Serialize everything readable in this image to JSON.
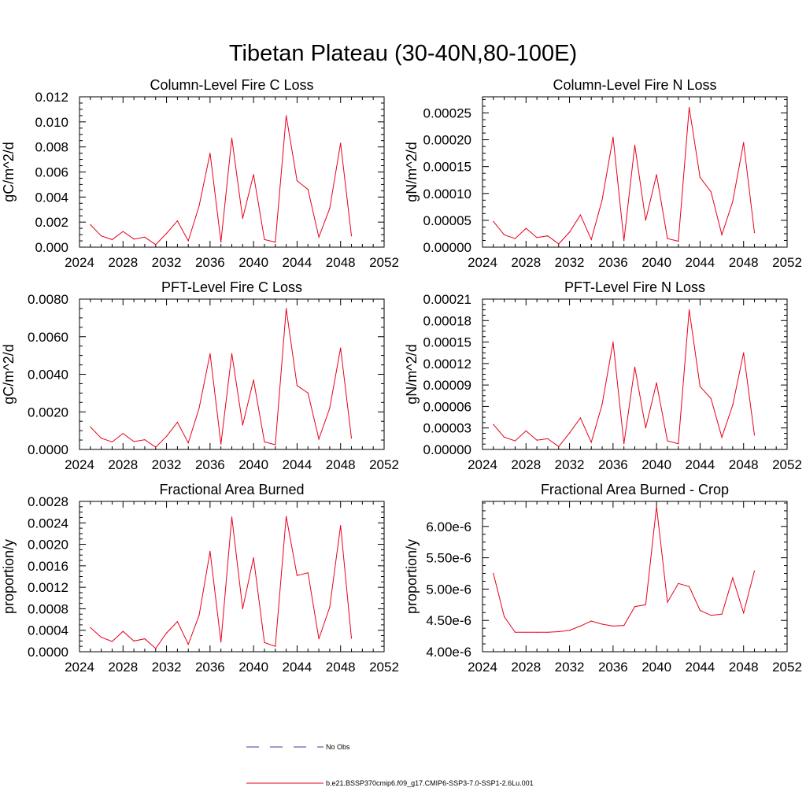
{
  "page": {
    "title": "Tibetan Plateau (30-40N,80-100E)"
  },
  "legend": {
    "items": [
      {
        "label": "No Obs",
        "color": "#3b3b9a",
        "style": "dashed"
      },
      {
        "label": "b.e21.BSSP370cmip6.f09_g17.CMIP6-SSP3-7.0-SSP1-2.6Lu.001",
        "color": "#e8001c",
        "style": "solid"
      }
    ]
  },
  "chart_data": [
    {
      "type": "line",
      "title": "Column-Level Fire C Loss",
      "ylabel": "gC/m^2/d",
      "xlim": [
        2024,
        2052
      ],
      "ylim": [
        0,
        0.012
      ],
      "xticks": [
        "2024",
        "2028",
        "2032",
        "2036",
        "2040",
        "2044",
        "2048",
        "2052"
      ],
      "yticks": [
        "0.000",
        "0.002",
        "0.004",
        "0.006",
        "0.008",
        "0.010",
        "0.012"
      ],
      "series": [
        {
          "color": "#e8001c",
          "x": [
            2025,
            2026,
            2027,
            2028,
            2029,
            2030,
            2031,
            2032,
            2033,
            2034,
            2035,
            2036,
            2037,
            2038,
            2039,
            2040,
            2041,
            2042,
            2043,
            2044,
            2045,
            2046,
            2047,
            2048,
            2049
          ],
          "values": [
            0.0018,
            0.0009,
            0.0006,
            0.00125,
            0.00065,
            0.0008,
            0.0002,
            0.0011,
            0.0021,
            0.0005,
            0.0033,
            0.0075,
            0.0004,
            0.0087,
            0.0023,
            0.0058,
            0.0006,
            0.0004,
            0.0105,
            0.0053,
            0.0046,
            0.0008,
            0.0031,
            0.0083,
            0.0009
          ]
        }
      ]
    },
    {
      "type": "line",
      "title": "Column-Level Fire N Loss",
      "ylabel": "gN/m^2/d",
      "xlim": [
        2024,
        2052
      ],
      "ylim": [
        0,
        0.00028
      ],
      "xticks": [
        "2024",
        "2028",
        "2032",
        "2036",
        "2040",
        "2044",
        "2048",
        "2052"
      ],
      "yticks": [
        "0.00000",
        "0.00005",
        "0.00010",
        "0.00015",
        "0.00020",
        "0.00025"
      ],
      "series": [
        {
          "color": "#e8001c",
          "x": [
            2025,
            2026,
            2027,
            2028,
            2029,
            2030,
            2031,
            2032,
            2033,
            2034,
            2035,
            2036,
            2037,
            2038,
            2039,
            2040,
            2041,
            2042,
            2043,
            2044,
            2045,
            2046,
            2047,
            2048,
            2049
          ],
          "values": [
            4.8e-05,
            2.3e-05,
            1.6e-05,
            3.5e-05,
            1.8e-05,
            2.1e-05,
            6e-06,
            2.8e-05,
            6e-05,
            1.4e-05,
            8.8e-05,
            0.000205,
            1.2e-05,
            0.00019,
            5e-05,
            0.000135,
            1.6e-05,
            1.1e-05,
            0.00026,
            0.00013,
            0.000103,
            2.3e-05,
            8.5e-05,
            0.000195,
            2.7e-05
          ]
        }
      ]
    },
    {
      "type": "line",
      "title": "PFT-Level Fire C Loss",
      "ylabel": "gC/m^2/d",
      "xlim": [
        2024,
        2052
      ],
      "ylim": [
        0,
        0.008
      ],
      "xticks": [
        "2024",
        "2028",
        "2032",
        "2036",
        "2040",
        "2044",
        "2048",
        "2052"
      ],
      "yticks": [
        "0.0000",
        "0.0020",
        "0.0040",
        "0.0060",
        "0.0080"
      ],
      "series": [
        {
          "color": "#e8001c",
          "x": [
            2025,
            2026,
            2027,
            2028,
            2029,
            2030,
            2031,
            2032,
            2033,
            2034,
            2035,
            2036,
            2037,
            2038,
            2039,
            2040,
            2041,
            2042,
            2043,
            2044,
            2045,
            2046,
            2047,
            2048,
            2049
          ],
          "values": [
            0.0012,
            0.0006,
            0.0004,
            0.00085,
            0.00042,
            0.00052,
            0.00012,
            0.0007,
            0.00145,
            0.00035,
            0.0022,
            0.0051,
            0.00028,
            0.0051,
            0.0013,
            0.0037,
            0.0004,
            0.00025,
            0.0075,
            0.0034,
            0.003,
            0.00055,
            0.0022,
            0.0054,
            0.0006
          ]
        }
      ]
    },
    {
      "type": "line",
      "title": "PFT-Level Fire N Loss",
      "ylabel": "gN/m^2/d",
      "xlim": [
        2024,
        2052
      ],
      "ylim": [
        0,
        0.00021
      ],
      "xticks": [
        "2024",
        "2028",
        "2032",
        "2036",
        "2040",
        "2044",
        "2048",
        "2052"
      ],
      "yticks": [
        "0.00000",
        "0.00003",
        "0.00006",
        "0.00009",
        "0.00012",
        "0.00015",
        "0.00018",
        "0.00021"
      ],
      "series": [
        {
          "color": "#e8001c",
          "x": [
            2025,
            2026,
            2027,
            2028,
            2029,
            2030,
            2031,
            2032,
            2033,
            2034,
            2035,
            2036,
            2037,
            2038,
            2039,
            2040,
            2041,
            2042,
            2043,
            2044,
            2045,
            2046,
            2047,
            2048,
            2049
          ],
          "values": [
            3.5e-05,
            1.7e-05,
            1.2e-05,
            2.6e-05,
            1.3e-05,
            1.5e-05,
            4e-06,
            2.3e-05,
            4.4e-05,
            1e-05,
            6.3e-05,
            0.00015,
            8e-06,
            0.000115,
            3e-05,
            9.3e-05,
            1.2e-05,
            8e-06,
            0.000195,
            8.8e-05,
            7.1e-05,
            1.7e-05,
            6.2e-05,
            0.000135,
            2e-05
          ]
        }
      ]
    },
    {
      "type": "line",
      "title": "Fractional Area Burned",
      "ylabel": "proportion/y",
      "xlim": [
        2024,
        2052
      ],
      "ylim": [
        0,
        0.0028
      ],
      "xticks": [
        "2024",
        "2028",
        "2032",
        "2036",
        "2040",
        "2044",
        "2048",
        "2052"
      ],
      "yticks": [
        "0.0000",
        "0.0004",
        "0.0008",
        "0.0012",
        "0.0016",
        "0.0020",
        "0.0024",
        "0.0028"
      ],
      "series": [
        {
          "color": "#e8001c",
          "x": [
            2025,
            2026,
            2027,
            2028,
            2029,
            2030,
            2031,
            2032,
            2033,
            2034,
            2035,
            2036,
            2037,
            2038,
            2039,
            2040,
            2041,
            2042,
            2043,
            2044,
            2045,
            2046,
            2047,
            2048,
            2049
          ],
          "values": [
            0.00045,
            0.00027,
            0.00019,
            0.00038,
            0.0002,
            0.00024,
            6e-05,
            0.00035,
            0.00056,
            0.00014,
            0.00068,
            0.00187,
            0.00018,
            0.00251,
            0.0008,
            0.00175,
            0.00017,
            0.0001,
            0.00252,
            0.00142,
            0.00147,
            0.00024,
            0.00083,
            0.00235,
            0.00025
          ]
        }
      ]
    },
    {
      "type": "line",
      "title": "Fractional Area Burned - Crop",
      "ylabel": "proportion/y",
      "xlim": [
        2024,
        2052
      ],
      "ylim": [
        4e-06,
        6.4e-06
      ],
      "xticks": [
        "2024",
        "2028",
        "2032",
        "2036",
        "2040",
        "2044",
        "2048",
        "2052"
      ],
      "yticks": [
        "4.00e-6",
        "4.50e-6",
        "5.00e-6",
        "5.50e-6",
        "6.00e-6"
      ],
      "series": [
        {
          "color": "#e8001c",
          "x": [
            2025,
            2026,
            2027,
            2028,
            2029,
            2030,
            2031,
            2032,
            2033,
            2034,
            2035,
            2036,
            2037,
            2038,
            2039,
            2040,
            2041,
            2042,
            2043,
            2044,
            2045,
            2046,
            2047,
            2048,
            2049
          ],
          "values": [
            5.25e-06,
            4.56e-06,
            4.31e-06,
            4.31e-06,
            4.31e-06,
            4.31e-06,
            4.32e-06,
            4.34e-06,
            4.41e-06,
            4.49e-06,
            4.44e-06,
            4.41e-06,
            4.42e-06,
            4.72e-06,
            4.75e-06,
            6.32e-06,
            4.79e-06,
            5.09e-06,
            5.04e-06,
            4.66e-06,
            4.58e-06,
            4.6e-06,
            5.18e-06,
            4.62e-06,
            5.29e-06
          ]
        }
      ]
    }
  ]
}
